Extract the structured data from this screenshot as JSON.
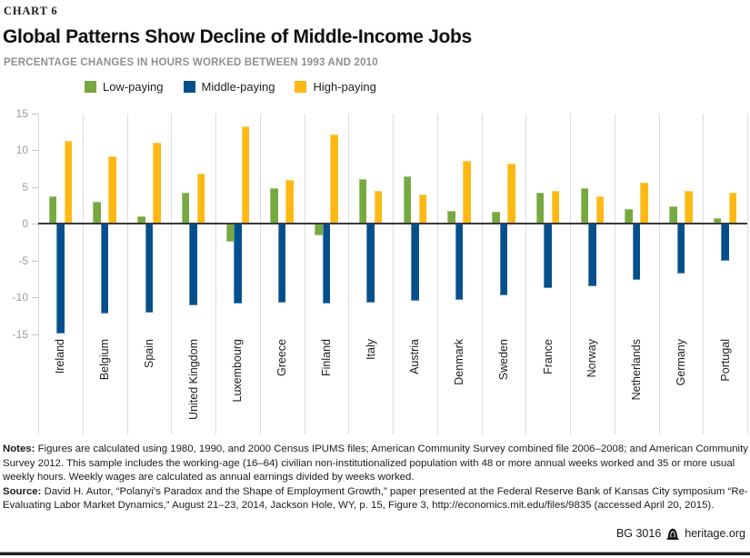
{
  "header": {
    "eyebrow": "CHART 6",
    "title": "Global Patterns Show Decline of Middle-Income Jobs",
    "subtitle": "PERCENTAGE CHANGES IN HOURS WORKED BETWEEN 1993 AND 2010"
  },
  "chart_data": {
    "type": "bar",
    "title": "Global Patterns Show Decline of Middle-Income Jobs",
    "subtitle": "PERCENTAGE CHANGES IN HOURS WORKED BETWEEN 1993 AND 2010",
    "categories": [
      "Ireland",
      "Belgium",
      "Spain",
      "United Kingdom",
      "Luxembourg",
      "Greece",
      "Finland",
      "Italy",
      "Austria",
      "Denmark",
      "Sweden",
      "France",
      "Norway",
      "Netherlands",
      "Germany",
      "Portugal"
    ],
    "series": [
      {
        "name": "Low-paying",
        "color": "#76A93F",
        "values": [
          3.7,
          3.0,
          1.0,
          4.2,
          -2.4,
          4.8,
          -1.5,
          6.1,
          6.4,
          1.7,
          1.6,
          4.2,
          4.8,
          2.0,
          2.3,
          0.7
        ]
      },
      {
        "name": "Middle-paying",
        "color": "#05508C",
        "values": [
          -14.8,
          -12.1,
          -12.0,
          -11.0,
          -10.8,
          -10.6,
          -10.7,
          -10.6,
          -10.4,
          -10.2,
          -9.6,
          -8.6,
          -8.4,
          -7.5,
          -6.7,
          -4.9
        ]
      },
      {
        "name": "High-paying",
        "color": "#FDB913",
        "values": [
          11.2,
          9.1,
          11.0,
          6.8,
          13.2,
          5.9,
          12.1,
          4.4,
          4.0,
          8.5,
          8.1,
          4.4,
          3.7,
          5.6,
          4.5,
          4.2
        ]
      }
    ],
    "ylim": [
      -15,
      15
    ],
    "yticks": [
      15,
      10,
      5,
      0,
      -5,
      -10,
      -15
    ],
    "grid": "vertical-between-groups-only",
    "legend_position": "top-left",
    "zero_line": true
  },
  "notes": {
    "label": "Notes:",
    "text": "Figures are calculated using 1980, 1990, and 2000 Census IPUMS files; American Community Survey combined file 2006–2008; and American Community Survey 2012. This sample includes the working-age (16–64) civilian non-institutionalized population with 48 or more annual weeks worked and 35 or more usual weekly hours. Weekly wages are calculated as annual earnings divided by weeks worked."
  },
  "source": {
    "label": "Source:",
    "text": "David H. Autor, “Polanyi’s Paradox and the Shape of Employment Growth,” paper presented at the Federal Reserve Bank of Kansas City symposium “Re-Evaluating Labor Market Dynamics,” August 21–23, 2014, Jackson Hole, WY, p. 15, Figure 3, http://economics.mit.edu/files/9835 (accessed April 20, 2015)."
  },
  "footer": {
    "doc_id": "BG 3016",
    "site": "heritage.org",
    "logo_icon": "heritage-bell-tower-icon"
  },
  "colors": {
    "low_paying": "#76A93F",
    "middle_paying": "#05508C",
    "high_paying": "#FDB913",
    "gridline": "#dcdcdc",
    "zero_line": "#3a3a3a",
    "axis_text": "#9b9b9b",
    "subtitle_text": "#8d9093"
  }
}
